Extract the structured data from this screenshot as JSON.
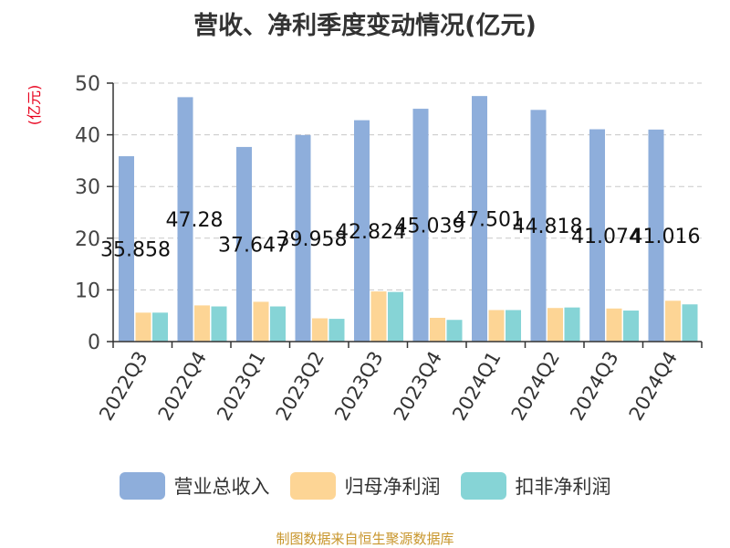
{
  "title": "营收、净利季度变动情况(亿元)",
  "unit_label": "(亿元)",
  "source": "制图数据来自恒生聚源数据库",
  "colors": {
    "revenue": "#8eaedb",
    "net_profit": "#fdd595",
    "deducted_profit": "#86d4d6"
  },
  "chart_data": {
    "type": "bar",
    "categories": [
      "2022Q3",
      "2022Q4",
      "2023Q1",
      "2023Q2",
      "2023Q3",
      "2023Q4",
      "2024Q1",
      "2024Q2",
      "2024Q3",
      "2024Q4"
    ],
    "series": [
      {
        "name": "营业总收入",
        "values": [
          35.858,
          47.28,
          37.647,
          39.958,
          42.824,
          45.039,
          47.501,
          44.818,
          41.074,
          41.016
        ]
      },
      {
        "name": "归母净利润",
        "values": [
          5.6,
          7.0,
          7.7,
          4.5,
          9.7,
          4.6,
          6.1,
          6.5,
          6.4,
          7.9
        ]
      },
      {
        "name": "扣非净利润",
        "values": [
          5.6,
          6.8,
          6.8,
          4.4,
          9.6,
          4.2,
          6.1,
          6.6,
          6.0,
          7.2
        ]
      }
    ],
    "data_labels": [
      "35.858",
      "47.28",
      "37.647",
      "39.958",
      "42.824",
      "45.039",
      "47.501",
      "44.818",
      "41.074",
      "41.016"
    ],
    "yticks": [
      0,
      10,
      20,
      30,
      40,
      50
    ],
    "ylim": [
      0,
      50
    ],
    "grid": true,
    "legend": "bottom"
  }
}
